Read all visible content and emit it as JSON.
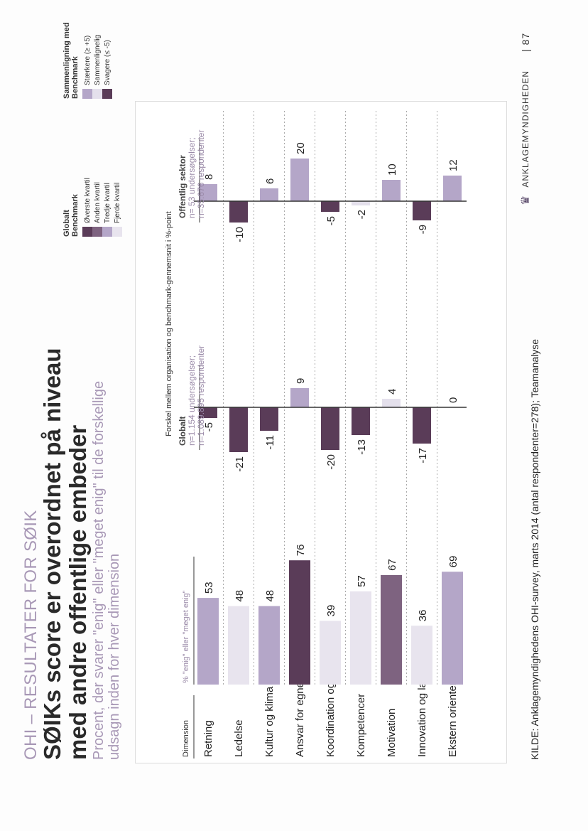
{
  "header": {
    "pagelabel": "OHI – RESULTATER FOR SØIK",
    "title": "SØIKs score er overordnet på niveau med andre offentlige embeder",
    "subtitle": "Procent, der svarer \"enig\" eller \"meget enig\" til de forskellige udsagn inden for hver dimension"
  },
  "columns": {
    "dimension_label": "Dimension",
    "score_label": "% \"enig\" eller \"meget enig\"",
    "diff_label": "Forskel mellem organisation og benchmark-gennemsnit i %-point"
  },
  "benchmarks": {
    "global": {
      "title": "Globalt",
      "n1": "n=1.154 undersøgelser;",
      "n2": "n=1.089.895 respondenter"
    },
    "public": {
      "title": "Offentlig sektor",
      "n1": "n= 53 undersøgelser;",
      "n2": "n=35.676 respondenter"
    }
  },
  "legend": {
    "quartile_title": "Globalt Benchmark",
    "quartiles": [
      {
        "label": "Øverste kvartil",
        "color": "#5a3c58"
      },
      {
        "label": "Anden kvartil",
        "color": "#7e6380"
      },
      {
        "label": "Tredje kvartil",
        "color": "#b4a6c8"
      },
      {
        "label": "Fjerde kvartil",
        "color": "#e8e4ee"
      }
    ],
    "compare_title": "Sammenligning med Benchmark",
    "compare": [
      {
        "label": "Stærkere (≥ +5)",
        "color": "#b4a6c8"
      },
      {
        "label": "Sammenlignelig",
        "color": "#e4e0ec"
      },
      {
        "label": "Svagere (≤ -5)",
        "color": "#5a3c58"
      }
    ]
  },
  "chart_data": {
    "type": "bar",
    "categories": [
      "Retning",
      "Ledelse",
      "Kultur og klima",
      "Ansvar for egne handlinger",
      "Koordination og kontrol",
      "Kompetencer",
      "Motivation",
      "Innovation og læring",
      "Ekstern orientering"
    ],
    "series": [
      {
        "name": "% \"enig\" eller \"meget enig\"",
        "values": [
          53,
          48,
          48,
          76,
          39,
          57,
          67,
          36,
          69
        ],
        "colors": [
          "#b4a6c8",
          "#e8e4ee",
          "#b4a6c8",
          "#5a3c58",
          "#e8e4ee",
          "#e8e4ee",
          "#7e6380",
          "#e8e4ee",
          "#b4a6c8"
        ]
      },
      {
        "name": "Globalt",
        "values": [
          -5,
          -21,
          -11,
          9,
          -20,
          -13,
          4,
          -17,
          0
        ],
        "colors": [
          "#5a3c58",
          "#5a3c58",
          "#5a3c58",
          "#b4a6c8",
          "#5a3c58",
          "#5a3c58",
          "#e4e0ec",
          "#5a3c58",
          "#e4e0ec"
        ]
      },
      {
        "name": "Offentlig sektor",
        "values": [
          8,
          -10,
          6,
          20,
          -5,
          -2,
          10,
          -9,
          12
        ],
        "colors": [
          "#b4a6c8",
          "#5a3c58",
          "#b4a6c8",
          "#b4a6c8",
          "#5a3c58",
          "#e4e0ec",
          "#b4a6c8",
          "#5a3c58",
          "#b4a6c8"
        ]
      }
    ]
  },
  "footer": {
    "source": "KILDE: Anklagemyndighedens OHI-survey, marts 2014 (antal respondenter=278); Teamanalyse",
    "logo_text": "ANKLAGEMYNDIGHEDEN",
    "page_number": "| 87"
  }
}
